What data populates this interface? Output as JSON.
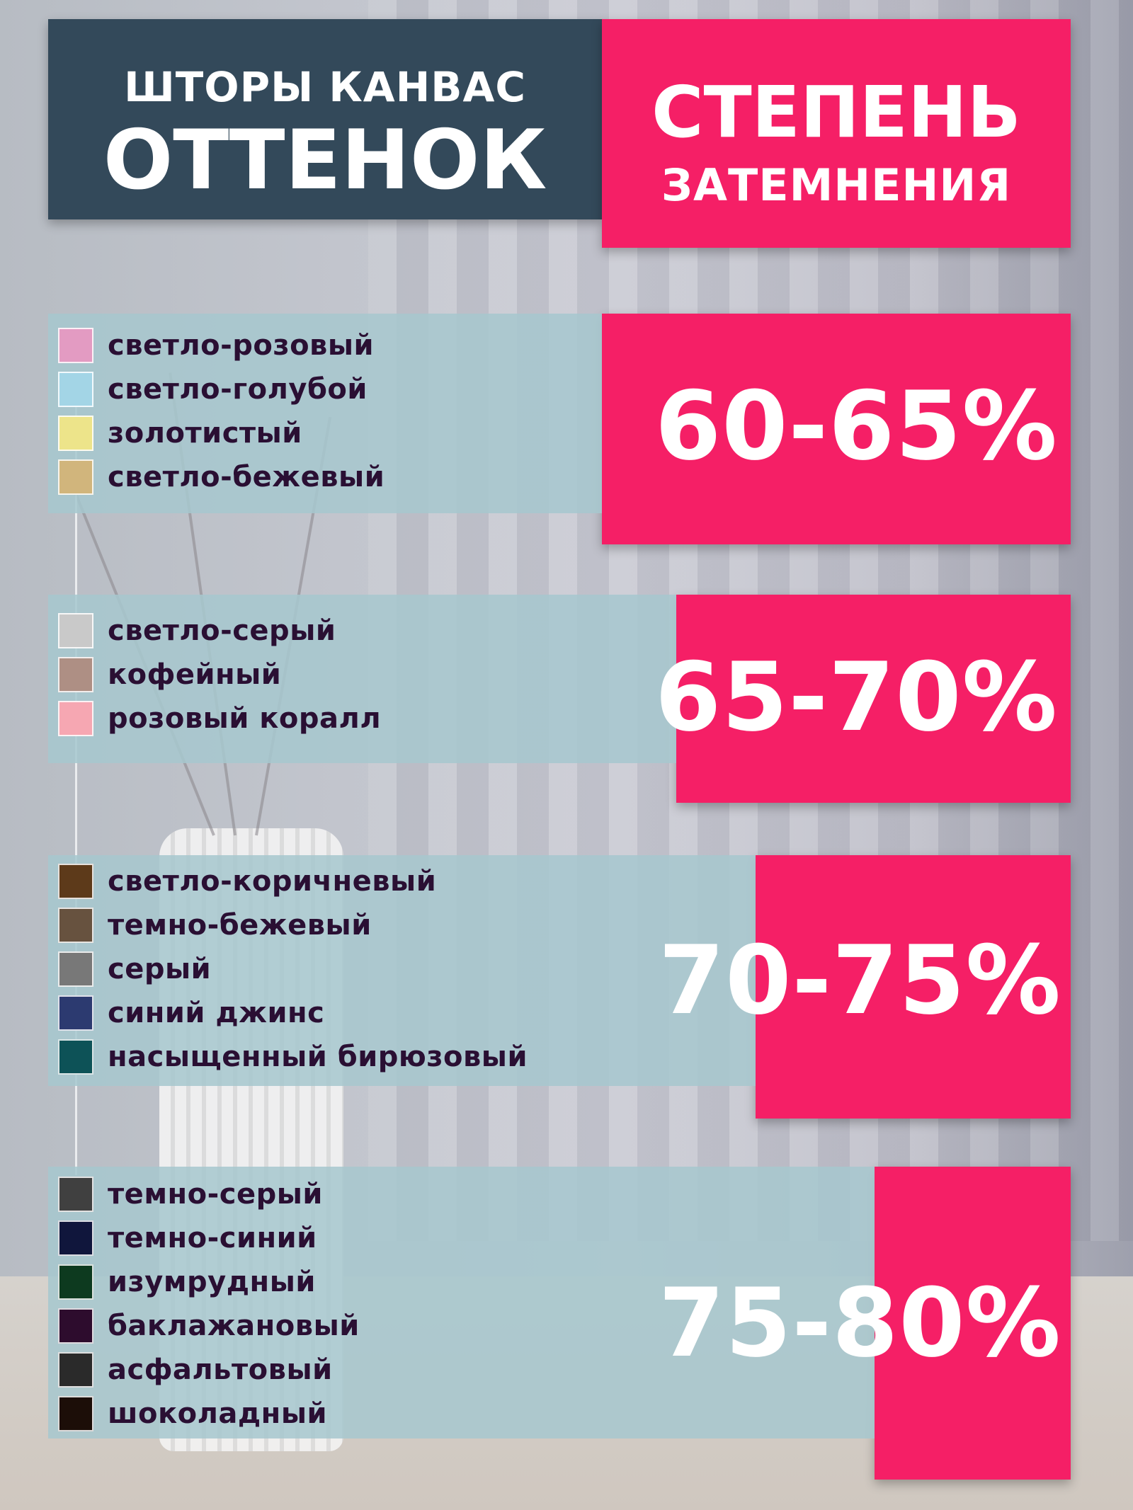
{
  "header": {
    "title_line1": "ШТОРЫ КАНВАС",
    "title_line2": "ОТТЕНОК",
    "degree_line1": "СТЕПЕНЬ",
    "degree_line2": "ЗАТЕМНЕНИЯ"
  },
  "groups": [
    {
      "percent": "60-65%",
      "colors": [
        {
          "label": "светло-розовый",
          "swatch": "#e39bc2"
        },
        {
          "label": "светло-голубой",
          "swatch": "#a3d5e6"
        },
        {
          "label": "золотистый",
          "swatch": "#ede48a"
        },
        {
          "label": "светло-бежевый",
          "swatch": "#d1b57c"
        }
      ]
    },
    {
      "percent": "65-70%",
      "colors": [
        {
          "label": "светло-серый",
          "swatch": "#c9c9c9"
        },
        {
          "label": "кофейный",
          "swatch": "#ae8f84"
        },
        {
          "label": "розовый коралл",
          "swatch": "#f6a7b2"
        }
      ]
    },
    {
      "percent": "70-75%",
      "colors": [
        {
          "label": "светло-коричневый",
          "swatch": "#5d3a1a"
        },
        {
          "label": "темно-бежевый",
          "swatch": "#67523f"
        },
        {
          "label": "серый",
          "swatch": "#787878"
        },
        {
          "label": "синий джинс",
          "swatch": "#2c3a70"
        },
        {
          "label": "насыщенный бирюзовый",
          "swatch": "#0d5257"
        }
      ]
    },
    {
      "percent": "75-80%",
      "colors": [
        {
          "label": "темно-серый",
          "swatch": "#404040"
        },
        {
          "label": "темно-синий",
          "swatch": "#10163c"
        },
        {
          "label": "изумрудный",
          "swatch": "#0d3a1f"
        },
        {
          "label": "баклажановый",
          "swatch": "#2d0c2d"
        },
        {
          "label": "асфальтовый",
          "swatch": "#2a2a2a"
        },
        {
          "label": "шоколадный",
          "swatch": "#1c0e08"
        }
      ]
    }
  ]
}
